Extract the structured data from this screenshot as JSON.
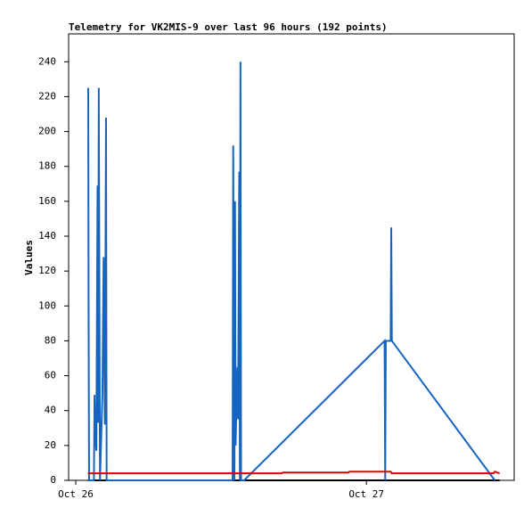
{
  "chart_data": {
    "type": "line",
    "title": "Telemetry for VK2MIS-9 over last 96 hours (192 points)",
    "y_label": "Values",
    "xlim": [
      -0.59,
      36.2
    ],
    "ylim": [
      0,
      256
    ],
    "xticks": [
      {
        "value": 0,
        "label": "Oct 26"
      },
      {
        "value": 24,
        "label": "Oct 27"
      }
    ],
    "yticks": [
      0,
      20,
      40,
      60,
      80,
      100,
      120,
      140,
      160,
      180,
      200,
      220,
      240
    ],
    "series": [
      {
        "color": "#000000",
        "x": [
          1.0,
          35.0
        ],
        "values": [
          0,
          0
        ]
      },
      {
        "color": "#1565c0",
        "x": [
          1.03,
          1.06,
          1.1,
          1.5,
          1.55,
          1.6,
          1.7,
          1.8,
          1.85,
          1.9,
          2.0,
          2.2,
          2.3,
          2.4,
          2.5,
          2.55,
          12.95,
          13.0,
          13.1,
          13.15,
          13.2,
          13.3,
          13.35,
          13.4,
          13.5,
          13.55,
          13.6,
          13.65,
          13.9,
          25.5,
          25.55,
          25.6,
          26.0,
          26.05,
          26.1,
          34.6
        ],
        "values": [
          225,
          97,
          0,
          0,
          49,
          25,
          17,
          169,
          33,
          225,
          0,
          49,
          128,
          32,
          208,
          0,
          0,
          192,
          0,
          160,
          20,
          56,
          65,
          35,
          177,
          0,
          240,
          0,
          0,
          80,
          0,
          80,
          80,
          145,
          80,
          0
        ]
      },
      {
        "color": "#e00000",
        "x": [
          1.0,
          17.0,
          17.1,
          22.5,
          22.6,
          26.0,
          26.1,
          34.5,
          34.6,
          35.0
        ],
        "values": [
          4,
          4,
          4.5,
          4.5,
          5,
          5,
          4,
          4,
          5,
          4
        ]
      }
    ]
  }
}
